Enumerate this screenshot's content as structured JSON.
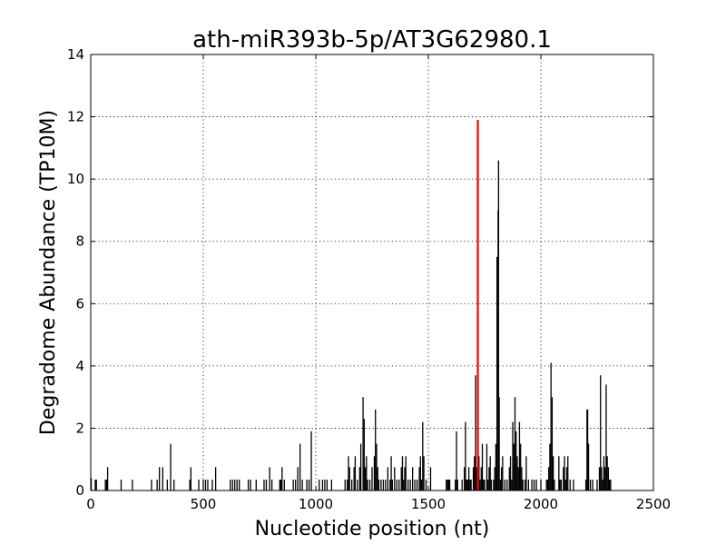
{
  "chart_data": {
    "type": "bar",
    "title": "ath-miR393b-5p/AT3G62980.1",
    "xlabel": "Nucleotide position (nt)",
    "ylabel": "Degradome Abundance (TP10M)",
    "xlim": [
      0,
      2500
    ],
    "ylim": [
      0,
      14
    ],
    "xticks": [
      0,
      500,
      1000,
      1500,
      2000,
      2500
    ],
    "yticks": [
      0,
      2,
      4,
      6,
      8,
      10,
      12,
      14
    ],
    "grid": true,
    "colors": {
      "bars": "#000000",
      "target": "#ff0000"
    },
    "series": [
      {
        "values": [
          [
            2,
            0.4
          ],
          [
            20,
            0.35
          ],
          [
            25,
            0.35
          ],
          [
            65,
            0.35
          ],
          [
            70,
            0.35
          ],
          [
            75,
            0.75
          ],
          [
            135,
            0.35
          ],
          [
            185,
            0.35
          ],
          [
            270,
            0.35
          ],
          [
            295,
            0.35
          ],
          [
            305,
            0.75
          ],
          [
            320,
            0.75
          ],
          [
            340,
            0.35
          ],
          [
            355,
            1.5
          ],
          [
            370,
            0.35
          ],
          [
            440,
            0.35
          ],
          [
            445,
            0.75
          ],
          [
            480,
            0.35
          ],
          [
            500,
            0.35
          ],
          [
            510,
            0.35
          ],
          [
            520,
            0.35
          ],
          [
            540,
            0.35
          ],
          [
            555,
            0.75
          ],
          [
            620,
            0.35
          ],
          [
            630,
            0.35
          ],
          [
            640,
            0.35
          ],
          [
            650,
            0.35
          ],
          [
            660,
            0.35
          ],
          [
            700,
            0.35
          ],
          [
            710,
            0.35
          ],
          [
            735,
            0.35
          ],
          [
            770,
            0.35
          ],
          [
            780,
            0.35
          ],
          [
            795,
            0.75
          ],
          [
            805,
            0.35
          ],
          [
            840,
            0.35
          ],
          [
            845,
            0.35
          ],
          [
            850,
            0.75
          ],
          [
            860,
            0.35
          ],
          [
            900,
            0.35
          ],
          [
            910,
            0.35
          ],
          [
            920,
            0.75
          ],
          [
            930,
            1.5
          ],
          [
            940,
            0.35
          ],
          [
            960,
            0.35
          ],
          [
            970,
            0.35
          ],
          [
            980,
            1.9
          ],
          [
            1015,
            0.35
          ],
          [
            1030,
            0.35
          ],
          [
            1040,
            0.35
          ],
          [
            1050,
            0.35
          ],
          [
            1070,
            0.35
          ],
          [
            1130,
            0.35
          ],
          [
            1140,
            0.35
          ],
          [
            1145,
            1.1
          ],
          [
            1150,
            0.75
          ],
          [
            1160,
            0.35
          ],
          [
            1170,
            0.75
          ],
          [
            1175,
            1.1
          ],
          [
            1185,
            0.35
          ],
          [
            1195,
            0.75
          ],
          [
            1200,
            1.5
          ],
          [
            1210,
            3.0
          ],
          [
            1215,
            2.3
          ],
          [
            1220,
            0.75
          ],
          [
            1225,
            1.1
          ],
          [
            1230,
            0.35
          ],
          [
            1240,
            0.35
          ],
          [
            1250,
            0.75
          ],
          [
            1260,
            1.1
          ],
          [
            1265,
            2.6
          ],
          [
            1270,
            1.5
          ],
          [
            1275,
            0.75
          ],
          [
            1280,
            0.35
          ],
          [
            1290,
            0.35
          ],
          [
            1300,
            0.35
          ],
          [
            1310,
            0.35
          ],
          [
            1320,
            0.75
          ],
          [
            1330,
            0.35
          ],
          [
            1335,
            1.1
          ],
          [
            1340,
            0.35
          ],
          [
            1350,
            0.75
          ],
          [
            1360,
            0.35
          ],
          [
            1370,
            0.35
          ],
          [
            1380,
            0.75
          ],
          [
            1385,
            1.1
          ],
          [
            1390,
            0.35
          ],
          [
            1395,
            0.75
          ],
          [
            1400,
            1.1
          ],
          [
            1410,
            0.35
          ],
          [
            1420,
            0.35
          ],
          [
            1430,
            0.75
          ],
          [
            1440,
            0.35
          ],
          [
            1450,
            0.35
          ],
          [
            1460,
            0.75
          ],
          [
            1465,
            1.1
          ],
          [
            1470,
            0.35
          ],
          [
            1475,
            2.2
          ],
          [
            1480,
            1.1
          ],
          [
            1490,
            0.35
          ],
          [
            1510,
            0.75
          ],
          [
            1580,
            0.35
          ],
          [
            1585,
            0.35
          ],
          [
            1590,
            0.35
          ],
          [
            1595,
            0.35
          ],
          [
            1620,
            0.35
          ],
          [
            1625,
            1.9
          ],
          [
            1630,
            0.35
          ],
          [
            1650,
            0.35
          ],
          [
            1660,
            0.75
          ],
          [
            1665,
            2.2
          ],
          [
            1670,
            0.35
          ],
          [
            1675,
            0.35
          ],
          [
            1680,
            0.75
          ],
          [
            1685,
            0.35
          ],
          [
            1690,
            0.35
          ],
          [
            1700,
            0.75
          ],
          [
            1705,
            1.1
          ],
          [
            1710,
            3.7
          ],
          [
            1715,
            0.75
          ],
          [
            1725,
            1.1
          ],
          [
            1730,
            0.35
          ],
          [
            1735,
            0.75
          ],
          [
            1740,
            1.5
          ],
          [
            1745,
            0.35
          ],
          [
            1750,
            0.35
          ],
          [
            1760,
            1.5
          ],
          [
            1765,
            0.35
          ],
          [
            1770,
            0.75
          ],
          [
            1775,
            1.1
          ],
          [
            1780,
            0.35
          ],
          [
            1790,
            0.35
          ],
          [
            1795,
            0.75
          ],
          [
            1800,
            1.5
          ],
          [
            1805,
            7.5
          ],
          [
            1810,
            9.0
          ],
          [
            1812,
            10.6
          ],
          [
            1815,
            3.0
          ],
          [
            1820,
            0.35
          ],
          [
            1825,
            0.75
          ],
          [
            1830,
            1.1
          ],
          [
            1840,
            0.35
          ],
          [
            1850,
            0.35
          ],
          [
            1860,
            0.75
          ],
          [
            1865,
            1.1
          ],
          [
            1870,
            0.35
          ],
          [
            1875,
            2.2
          ],
          [
            1880,
            1.5
          ],
          [
            1885,
            3.0
          ],
          [
            1890,
            1.9
          ],
          [
            1895,
            1.1
          ],
          [
            1900,
            0.75
          ],
          [
            1905,
            2.2
          ],
          [
            1910,
            1.5
          ],
          [
            1915,
            0.75
          ],
          [
            1920,
            0.35
          ],
          [
            1930,
            0.35
          ],
          [
            1935,
            1.1
          ],
          [
            1945,
            0.35
          ],
          [
            1960,
            0.35
          ],
          [
            1970,
            0.35
          ],
          [
            1980,
            0.35
          ],
          [
            2000,
            0.35
          ],
          [
            2025,
            0.35
          ],
          [
            2030,
            0.35
          ],
          [
            2035,
            0.75
          ],
          [
            2040,
            1.5
          ],
          [
            2045,
            4.1
          ],
          [
            2050,
            3.0
          ],
          [
            2055,
            1.1
          ],
          [
            2060,
            0.35
          ],
          [
            2080,
            1.1
          ],
          [
            2085,
            0.35
          ],
          [
            2090,
            0.35
          ],
          [
            2100,
            0.75
          ],
          [
            2105,
            1.1
          ],
          [
            2110,
            0.35
          ],
          [
            2115,
            0.75
          ],
          [
            2120,
            1.1
          ],
          [
            2130,
            0.35
          ],
          [
            2145,
            0.35
          ],
          [
            2200,
            0.35
          ],
          [
            2205,
            2.6
          ],
          [
            2208,
            2.6
          ],
          [
            2212,
            1.5
          ],
          [
            2220,
            0.35
          ],
          [
            2230,
            0.35
          ],
          [
            2250,
            0.35
          ],
          [
            2260,
            0.75
          ],
          [
            2265,
            3.7
          ],
          [
            2270,
            0.75
          ],
          [
            2275,
            0.35
          ],
          [
            2280,
            1.1
          ],
          [
            2285,
            0.75
          ],
          [
            2290,
            3.4
          ],
          [
            2295,
            1.1
          ],
          [
            2300,
            0.75
          ],
          [
            2305,
            0.35
          ],
          [
            2310,
            0.35
          ]
        ]
      }
    ],
    "target": {
      "x": 1720,
      "y": 11.9
    }
  }
}
